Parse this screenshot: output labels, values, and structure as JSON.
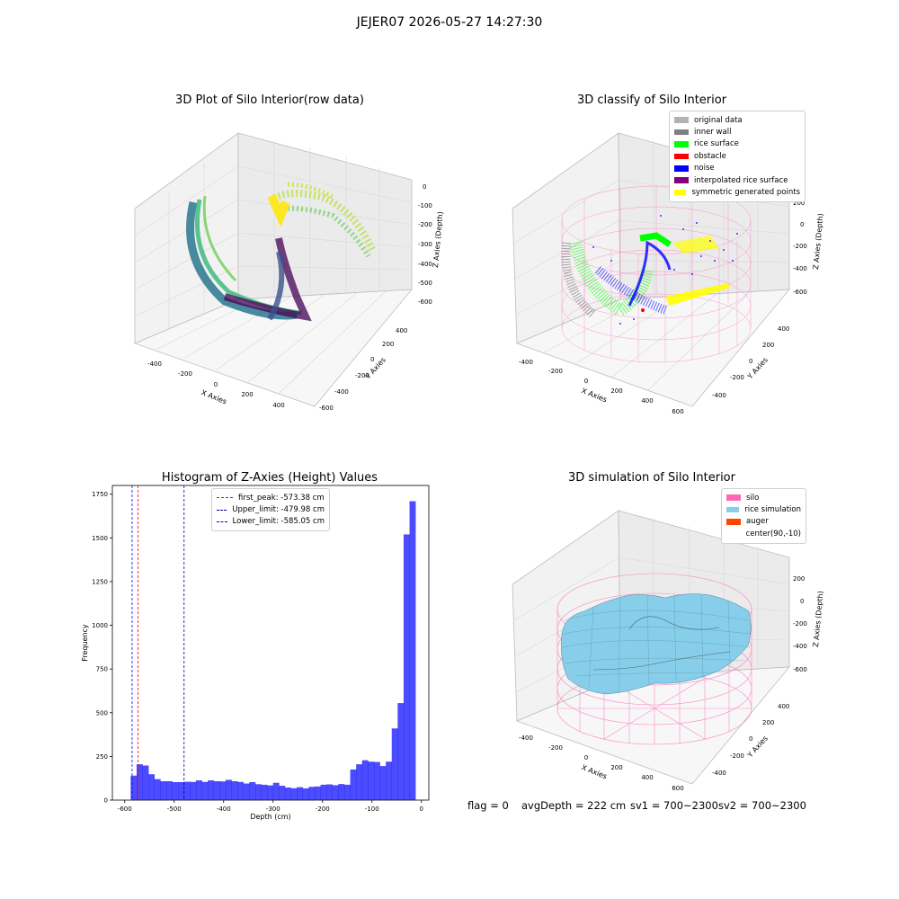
{
  "suptitle": "JEJER07 2026-05-27 14:27:30",
  "panels": {
    "raw": {
      "title": "3D Plot of Silo Interior(row data)",
      "xlabel": "X Axies",
      "ylabel": "Y Axies",
      "zlabel": "Z Axies (Depth)",
      "xticks": [
        "-400",
        "-200",
        "0",
        "200",
        "400"
      ],
      "yticks": [
        "400",
        "200",
        "0",
        "-200",
        "-400",
        "-600"
      ],
      "zticks": [
        "0",
        "-100",
        "-200",
        "-300",
        "-400",
        "-500",
        "-600"
      ]
    },
    "classify": {
      "title": "3D classify of Silo Interior",
      "xlabel": "X Axies",
      "ylabel": "Y Axies",
      "zlabel": "Z Axies (Depth)",
      "xticks": [
        "-400",
        "-200",
        "0",
        "200",
        "400",
        "600"
      ],
      "yticks": [
        "400",
        "200",
        "0",
        "-200",
        "-400"
      ],
      "zticks": [
        "200",
        "0",
        "-200",
        "-400",
        "-600"
      ],
      "legend": [
        {
          "label": "original data",
          "color": "#b3b3b3"
        },
        {
          "label": "inner wall",
          "color": "#808080"
        },
        {
          "label": "rice surface",
          "color": "#00ff00"
        },
        {
          "label": "obstacle",
          "color": "#ff0000"
        },
        {
          "label": "noise",
          "color": "#0000ff"
        },
        {
          "label": "interpolated rice surface",
          "color": "#800080"
        },
        {
          "label": "symmetric generated points",
          "color": "#ffff00"
        }
      ]
    },
    "simulation": {
      "title": "3D simulation of Silo Interior",
      "xlabel": "X Axies",
      "ylabel": "Y Axies",
      "zlabel": "Z Axies (Depth)",
      "xticks": [
        "-400",
        "-200",
        "0",
        "200",
        "400",
        "600"
      ],
      "yticks": [
        "400",
        "200",
        "0",
        "-200",
        "-400"
      ],
      "zticks": [
        "200",
        "0",
        "-200",
        "-400",
        "-600"
      ],
      "legend": [
        {
          "label": "silo",
          "color": "#ff69b4"
        },
        {
          "label": "rice simulation",
          "color": "#87ceeb"
        },
        {
          "label": "auger",
          "color": "#ff4500"
        },
        {
          "label": "center(90,-10)",
          "color": "#ffffff"
        }
      ]
    }
  },
  "status": {
    "flag": "flag = 0",
    "avg": "avgDepth = 222 cm",
    "sv1": "sv1 = 700~2300",
    "sv2": "sv2 = 700~2300"
  },
  "chart_data": {
    "type": "bar",
    "title": "Histogram of Z-Axies (Height) Values",
    "xlabel": "Depth (cm)",
    "ylabel": "Frequency",
    "xlim": [
      -625,
      15
    ],
    "ylim": [
      0,
      1800
    ],
    "xticks": [
      -600,
      -500,
      -400,
      -300,
      -200,
      -100,
      0
    ],
    "yticks": [
      0,
      250,
      500,
      750,
      1000,
      1250,
      1500,
      1750
    ],
    "bar_color": "#0000ff",
    "bin_width": 12,
    "bin_start": -588,
    "values": [
      140,
      205,
      198,
      148,
      120,
      108,
      108,
      103,
      103,
      105,
      104,
      113,
      104,
      113,
      108,
      107,
      116,
      108,
      104,
      95,
      103,
      91,
      88,
      84,
      99,
      82,
      72,
      68,
      74,
      67,
      76,
      78,
      88,
      90,
      85,
      92,
      88,
      175,
      205,
      228,
      220,
      218,
      195,
      220,
      410,
      555,
      1520,
      1710
    ],
    "vlines": [
      {
        "label": "first_peak: -573.38 cm",
        "x": -573.38,
        "color": "#ff0000"
      },
      {
        "label": "Upper_limit: -479.98 cm",
        "x": -479.98,
        "color": "#00008b"
      },
      {
        "label": "Lower_limit: -585.05 cm",
        "x": -585.05,
        "color": "#0000ff"
      }
    ]
  }
}
